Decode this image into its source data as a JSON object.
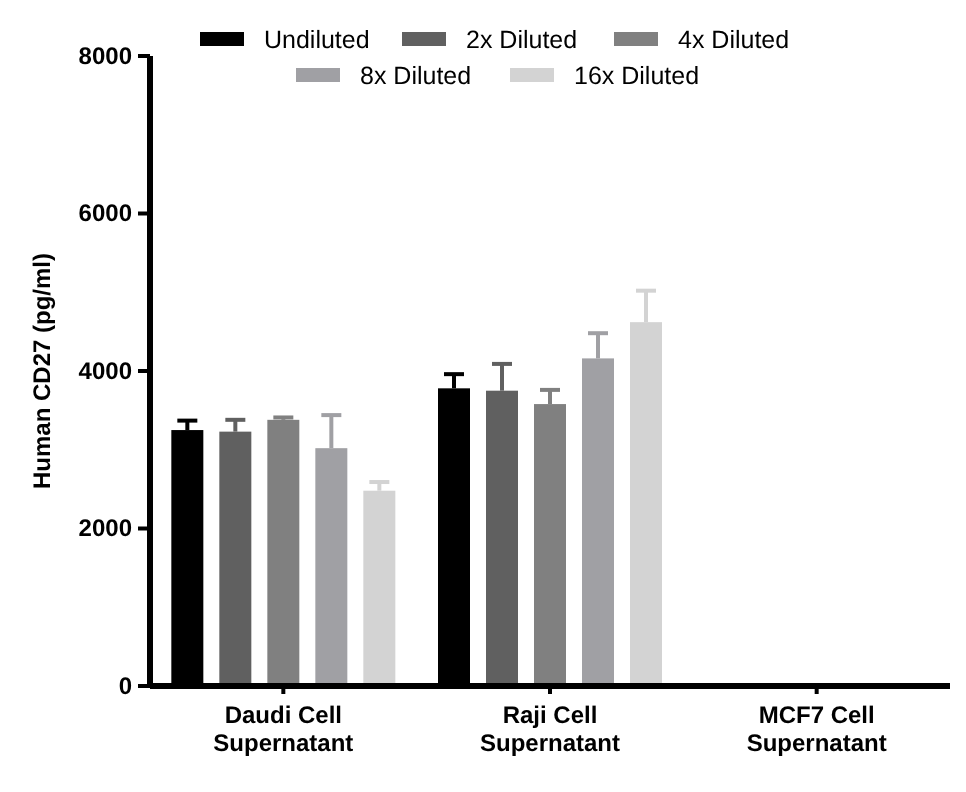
{
  "chart_data": {
    "type": "bar",
    "ylabel": "Human CD27 (pg/ml)",
    "categories": [
      "Daudi Cell Supernatant",
      "Raji Cell Supernatant",
      "MCF7 Cell Supernatant"
    ],
    "series": [
      {
        "name": "Undiluted",
        "color": "#000000",
        "values": [
          3250,
          3780,
          0
        ],
        "errors": [
          120,
          180,
          null
        ]
      },
      {
        "name": "2x Diluted",
        "color": "#606060",
        "values": [
          3230,
          3750,
          0
        ],
        "errors": [
          150,
          340,
          null
        ]
      },
      {
        "name": "4x Diluted",
        "color": "#808080",
        "values": [
          3380,
          3580,
          0
        ],
        "errors": [
          30,
          180,
          null
        ]
      },
      {
        "name": "8x Diluted",
        "color": "#a0a0a4",
        "values": [
          3020,
          4160,
          0
        ],
        "errors": [
          420,
          320,
          null
        ]
      },
      {
        "name": "16x Diluted",
        "color": "#d3d3d3",
        "values": [
          2480,
          4620,
          0
        ],
        "errors": [
          110,
          400,
          null
        ]
      }
    ],
    "ylim": [
      0,
      8000
    ],
    "yticks": [
      0,
      2000,
      4000,
      6000,
      8000
    ],
    "grid": false,
    "legend": "top"
  }
}
